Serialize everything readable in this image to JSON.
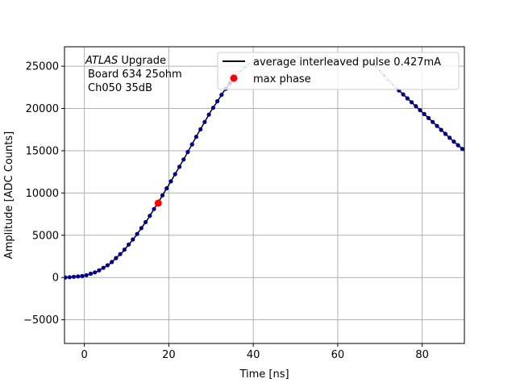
{
  "chart_data": {
    "type": "line",
    "xlabel": "Time [ns]",
    "ylabel": "Amplitude [ADC Counts]",
    "xlim": [
      -4.7,
      90
    ],
    "ylim": [
      -7800,
      27300
    ],
    "xticks": [
      0,
      20,
      40,
      60,
      80
    ],
    "yticks": [
      -5000,
      0,
      5000,
      10000,
      15000,
      20000,
      25000
    ],
    "grid": true,
    "legend_position": "top-right",
    "annotation": {
      "italic": "ATLAS",
      "rest": " Upgrade",
      "line2": "Board 634 25ohm",
      "line3": "Ch050 35dB"
    },
    "series": [
      {
        "name": "average interleaved pulse 0.427mA",
        "kind": "line",
        "color": "#000000",
        "x": [
          -4.5,
          0,
          3,
          6,
          9,
          12,
          15,
          18,
          21,
          24,
          27,
          30,
          33,
          36,
          39,
          42,
          45,
          50,
          55,
          60,
          65,
          68,
          70,
          72,
          75,
          78,
          81,
          84,
          87,
          90
        ],
        "y": [
          0,
          200,
          700,
          1600,
          3000,
          4800,
          6900,
          9300,
          11800,
          14400,
          17100,
          19700,
          22000,
          24000,
          25300,
          25800,
          25900,
          26000,
          26000,
          25900,
          25700,
          25400,
          24500,
          23300,
          21900,
          20500,
          19100,
          17700,
          16300,
          15000
        ]
      },
      {
        "name": "",
        "kind": "points",
        "color": "#00008b",
        "x": [
          -4.5,
          0,
          3,
          6,
          9,
          12,
          15,
          18,
          21,
          24,
          27,
          30,
          33,
          36,
          39,
          42,
          45,
          50,
          55,
          60,
          65,
          68,
          70,
          72,
          75,
          78,
          81,
          84,
          87,
          90
        ],
        "y": [
          0,
          200,
          700,
          1600,
          3000,
          4800,
          6900,
          9300,
          11800,
          14400,
          17100,
          19700,
          22000,
          24000,
          25300,
          25800,
          25900,
          26000,
          26000,
          25900,
          25700,
          25400,
          24500,
          23300,
          21900,
          20500,
          19100,
          17700,
          16300,
          15000
        ]
      },
      {
        "name": "max phase",
        "kind": "marker",
        "color": "#ff0000",
        "x": [
          17.5
        ],
        "y": [
          8800
        ]
      }
    ]
  }
}
